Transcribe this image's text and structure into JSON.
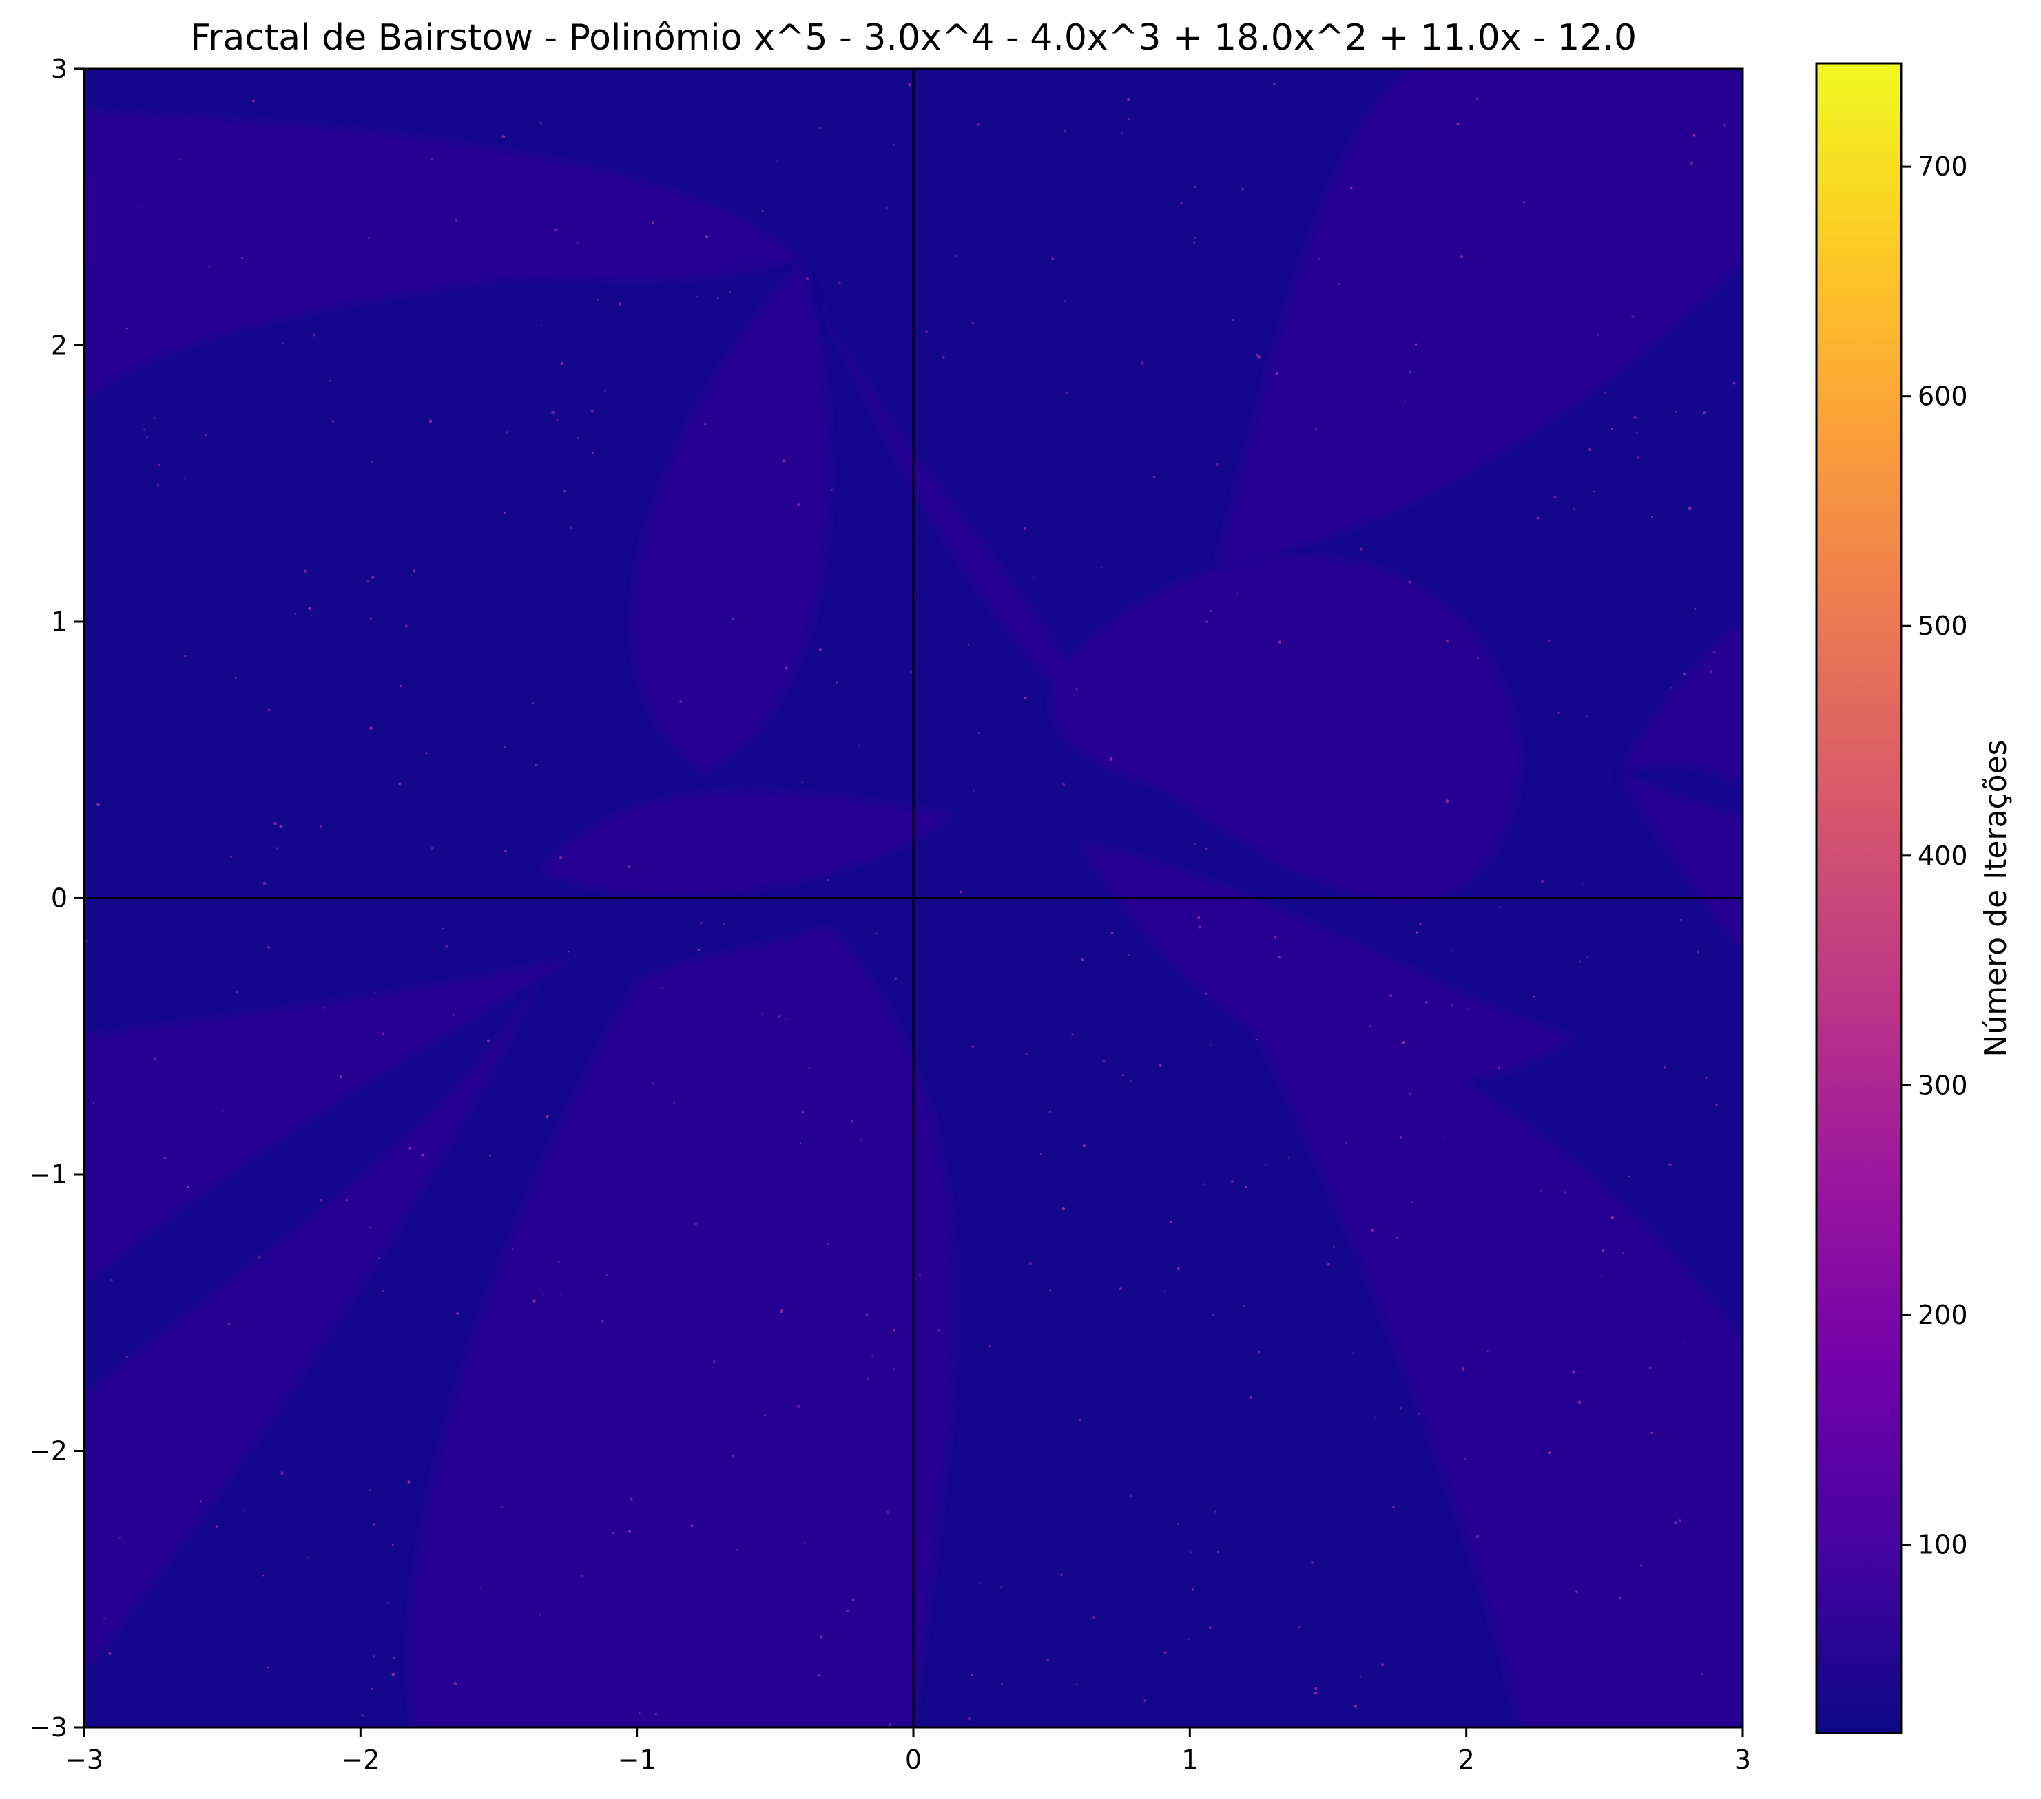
{
  "chart_data": {
    "type": "heatmap",
    "title": "Fractal de Bairstow - Polinômio x^5 - 3.0x^4 - 4.0x^3 + 18.0x^2 + 11.0x - 12.0",
    "xlabel": "",
    "ylabel": "",
    "xlim": [
      -3,
      3
    ],
    "ylim": [
      -3,
      3
    ],
    "x_ticks": [
      -3,
      -2,
      -1,
      0,
      1,
      2,
      3
    ],
    "x_tick_labels": [
      "−3",
      "−2",
      "−1",
      "0",
      "1",
      "2",
      "3"
    ],
    "y_ticks": [
      -3,
      -2,
      -1,
      0,
      1,
      2,
      3
    ],
    "y_tick_labels": [
      "−3",
      "−2",
      "−1",
      "0",
      "1",
      "2",
      "3"
    ],
    "axis_lines": {
      "x": 0,
      "y": 0
    },
    "grid": false,
    "colormap": "plasma",
    "colorbar": {
      "label": "Número de Iterações",
      "range": [
        18,
        745
      ],
      "ticks": [
        100,
        200,
        300,
        400,
        500,
        600,
        700
      ],
      "tick_labels": [
        "100",
        "200",
        "300",
        "400",
        "500",
        "600",
        "700"
      ]
    },
    "iteration_field": {
      "background_level": 30,
      "dense_level": 60
    },
    "colors": {
      "plasma_stops": [
        "#0d0887",
        "#46039f",
        "#7201a8",
        "#9c179e",
        "#bd3786",
        "#d8576b",
        "#ed7953",
        "#fb9f3a",
        "#fdca26",
        "#f0f921"
      ],
      "dark_background": "#2c2290",
      "dense_region": "#4a1aa0",
      "speckle": "#a23bb0"
    }
  }
}
